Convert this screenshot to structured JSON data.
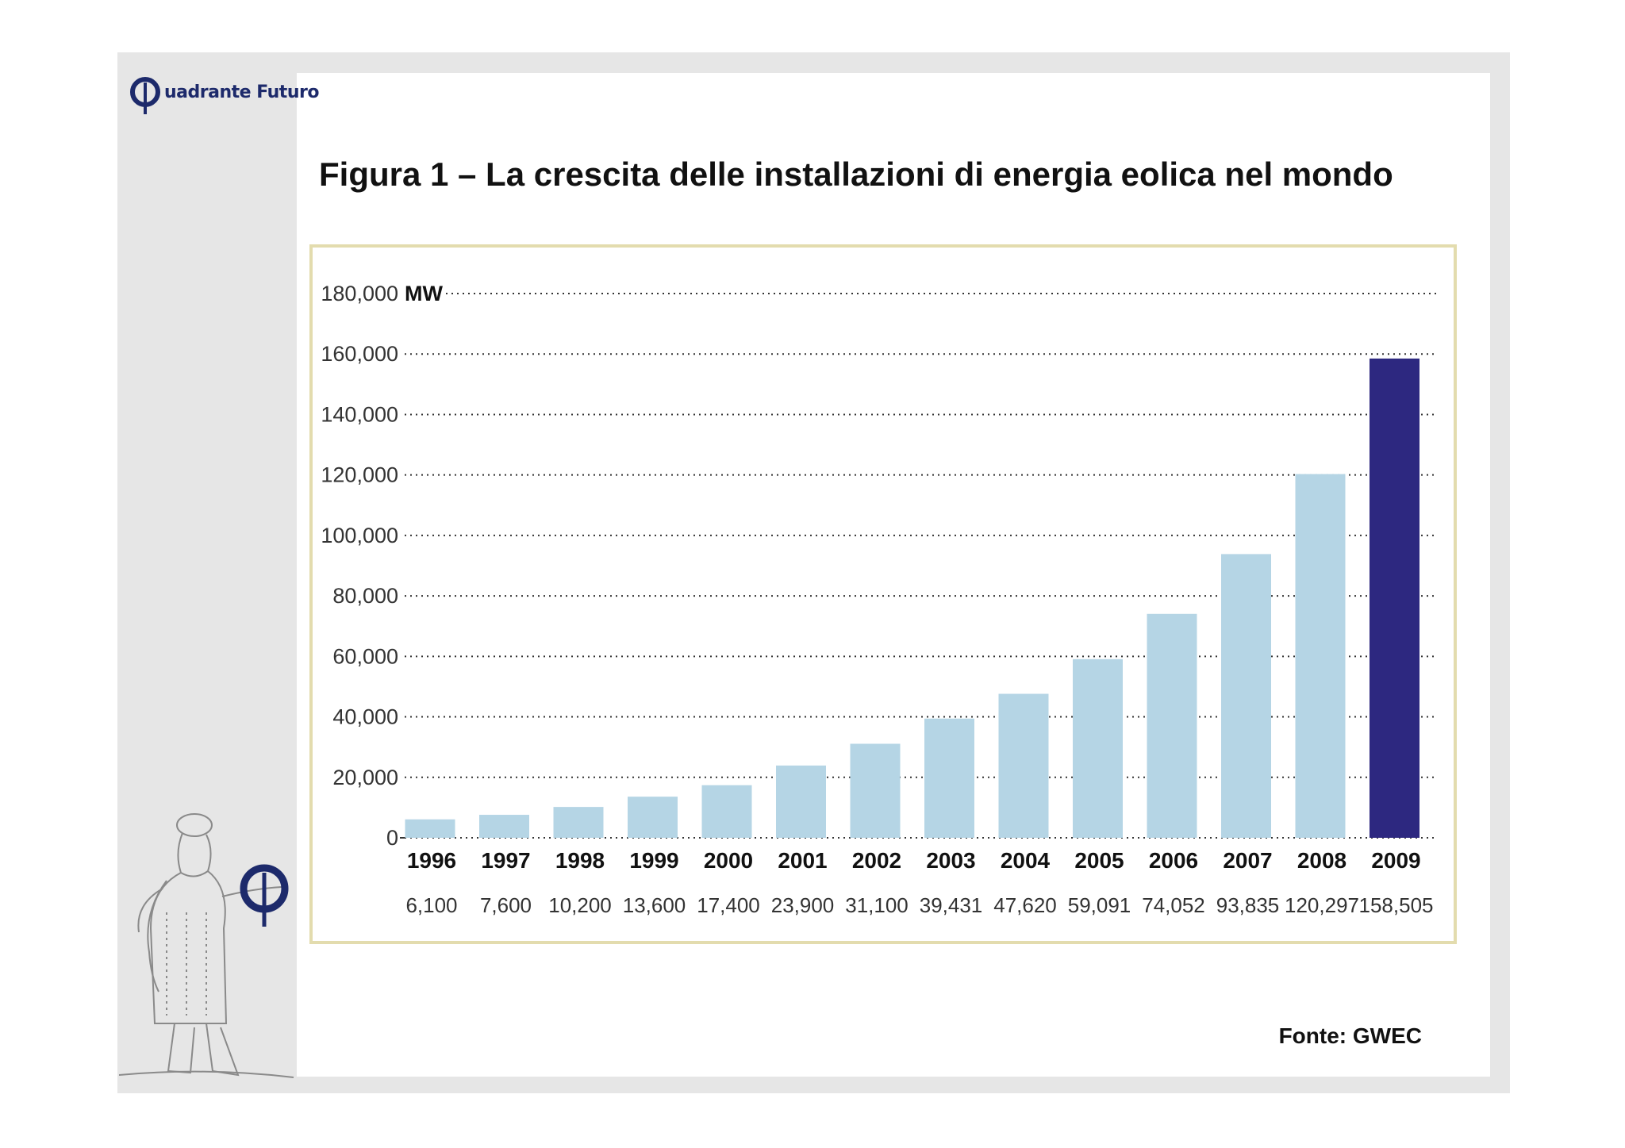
{
  "brand": {
    "name": "uadrante Futuro"
  },
  "colors": {
    "bar": "#b5d5e5",
    "highlight_bar": "#2d2880",
    "frame": "#e3dcae",
    "brand": "#1d2a6b"
  },
  "slide": {
    "title": "Figura 1 – La crescita delle installazioni di energia eolica nel mondo",
    "source": "Fonte: GWEC"
  },
  "chart_data": {
    "type": "bar",
    "title": "Figura 1 – La crescita delle installazioni di energia eolica nel mondo",
    "unit": "MW",
    "ylim": [
      0,
      180000
    ],
    "yticks": [
      0,
      20000,
      40000,
      60000,
      80000,
      100000,
      120000,
      140000,
      160000,
      180000
    ],
    "ytick_labels": [
      "0",
      "20,000",
      "40,000",
      "60,000",
      "80,000",
      "100,000",
      "120,000",
      "140,000",
      "160,000",
      "180,000"
    ],
    "grid": "dotted horizontal",
    "categories": [
      "1996",
      "1997",
      "1998",
      "1999",
      "2000",
      "2001",
      "2002",
      "2003",
      "2004",
      "2005",
      "2006",
      "2007",
      "2008",
      "2009"
    ],
    "values": [
      6100,
      7600,
      10200,
      13600,
      17400,
      23900,
      31100,
      39431,
      47620,
      59091,
      74052,
      93835,
      120297,
      158505
    ],
    "value_labels": [
      "6,100",
      "7,600",
      "10,200",
      "13,600",
      "17,400",
      "23,900",
      "31,100",
      "39,431",
      "47,620",
      "59,091",
      "74,052",
      "93,835",
      "120,297",
      "158,505"
    ],
    "highlight": "2009",
    "source": "Fonte: GWEC"
  }
}
